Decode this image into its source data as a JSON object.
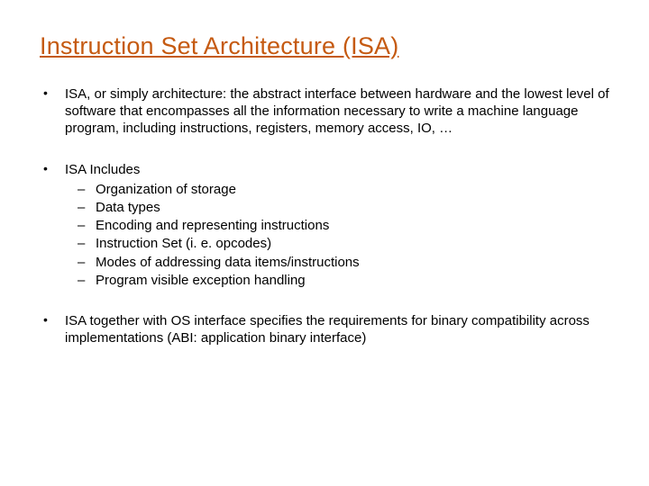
{
  "title": {
    "text": "Instruction Set Architecture (ISA)",
    "color": "#c55a11",
    "fontsize": 27,
    "underline": true
  },
  "body": {
    "fontsize": 15,
    "color": "#000000"
  },
  "bullets": [
    {
      "text": "ISA, or simply architecture: the abstract interface between hardware and the lowest level of software that encompasses all the information necessary to write a machine language program, including instructions, registers, memory access, IO, …"
    },
    {
      "text": "ISA Includes",
      "sub": [
        "Organization of storage",
        "Data types",
        "Encoding and representing instructions",
        "Instruction Set (i. e. opcodes)",
        "Modes of addressing data items/instructions",
        "Program visible exception handling"
      ]
    },
    {
      "text": "ISA together with OS interface specifies the requirements for binary compatibility across implementations (ABI: application binary interface)"
    }
  ],
  "background_color": "#ffffff"
}
